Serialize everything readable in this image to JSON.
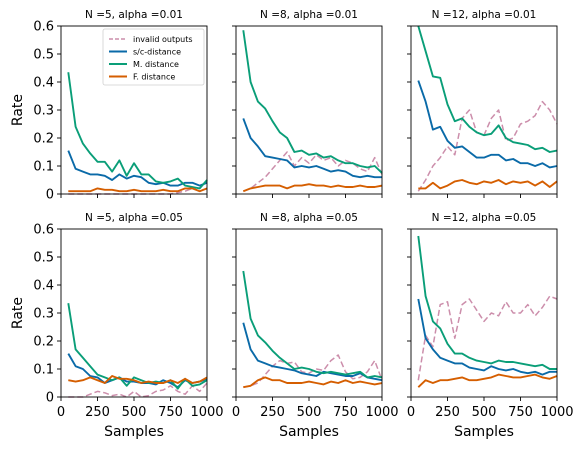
{
  "chart_data": [
    {
      "type": "line",
      "title": "N =5, alpha =0.01",
      "xlabel": "",
      "ylabel": "Rate",
      "xlim": [
        0,
        1000
      ],
      "ylim": [
        0,
        0.6
      ],
      "xticks": [
        0,
        250,
        500,
        750,
        1000
      ],
      "yticks": [
        0,
        0.1,
        0.2,
        0.3,
        0.4,
        0.5,
        0.6
      ],
      "xticklabels_visible": false,
      "yticklabels_visible": true,
      "legend": "upper right",
      "x": [
        50,
        100,
        150,
        200,
        250,
        300,
        350,
        400,
        450,
        500,
        550,
        600,
        650,
        700,
        750,
        800,
        850,
        900,
        950,
        1000
      ],
      "series": [
        {
          "name": "invalid outputs",
          "values": [
            0,
            0,
            0,
            0,
            0,
            0,
            0,
            0,
            0,
            0,
            0,
            0,
            0,
            0,
            0,
            0.005,
            0.01,
            0.02,
            0.01,
            0.02
          ]
        },
        {
          "name": "s/c-distance",
          "values": [
            0.155,
            0.09,
            0.08,
            0.07,
            0.07,
            0.065,
            0.05,
            0.07,
            0.055,
            0.065,
            0.06,
            0.04,
            0.035,
            0.04,
            0.03,
            0.03,
            0.04,
            0.04,
            0.03,
            0.04
          ]
        },
        {
          "name": "M. distance",
          "values": [
            0.435,
            0.24,
            0.18,
            0.145,
            0.115,
            0.115,
            0.08,
            0.12,
            0.065,
            0.11,
            0.07,
            0.07,
            0.045,
            0.04,
            0.045,
            0.055,
            0.03,
            0.025,
            0.02,
            0.05
          ]
        },
        {
          "name": "F. distance",
          "values": [
            0.01,
            0.01,
            0.01,
            0.01,
            0.02,
            0.015,
            0.015,
            0.01,
            0.01,
            0.015,
            0.01,
            0.01,
            0.01,
            0.015,
            0.01,
            0.01,
            0.02,
            0.02,
            0.01,
            0.02
          ]
        }
      ]
    },
    {
      "type": "line",
      "title": "N =8, alpha =0.01",
      "xlabel": "",
      "ylabel": "",
      "xlim": [
        0,
        1000
      ],
      "ylim": [
        0,
        0.6
      ],
      "xticks": [
        0,
        250,
        500,
        750,
        1000
      ],
      "yticks": [
        0,
        0.1,
        0.2,
        0.3,
        0.4,
        0.5,
        0.6
      ],
      "xticklabels_visible": false,
      "yticklabels_visible": false,
      "x": [
        50,
        100,
        150,
        200,
        250,
        300,
        350,
        400,
        450,
        500,
        550,
        600,
        650,
        700,
        750,
        800,
        850,
        900,
        950,
        1000
      ],
      "series": [
        {
          "name": "invalid outputs",
          "values": [
            0.01,
            0.02,
            0.04,
            0.06,
            0.09,
            0.12,
            0.15,
            0.1,
            0.13,
            0.11,
            0.14,
            0.12,
            0.13,
            0.1,
            0.12,
            0.11,
            0.09,
            0.08,
            0.13,
            0.07
          ]
        },
        {
          "name": "s/c-distance",
          "values": [
            0.27,
            0.2,
            0.17,
            0.135,
            0.13,
            0.125,
            0.12,
            0.095,
            0.1,
            0.095,
            0.1,
            0.09,
            0.08,
            0.085,
            0.08,
            0.065,
            0.06,
            0.065,
            0.06,
            0.06
          ]
        },
        {
          "name": "M. distance",
          "values": [
            0.585,
            0.4,
            0.33,
            0.305,
            0.26,
            0.22,
            0.2,
            0.15,
            0.155,
            0.14,
            0.145,
            0.13,
            0.135,
            0.12,
            0.11,
            0.11,
            0.1,
            0.095,
            0.1,
            0.075
          ]
        },
        {
          "name": "F. distance",
          "values": [
            0.01,
            0.02,
            0.025,
            0.03,
            0.03,
            0.03,
            0.02,
            0.03,
            0.03,
            0.035,
            0.03,
            0.03,
            0.025,
            0.03,
            0.025,
            0.025,
            0.03,
            0.025,
            0.025,
            0.03
          ]
        }
      ]
    },
    {
      "type": "line",
      "title": "N =12, alpha =0.01",
      "xlabel": "",
      "ylabel": "",
      "xlim": [
        0,
        1000
      ],
      "ylim": [
        0,
        0.6
      ],
      "xticks": [
        0,
        250,
        500,
        750,
        1000
      ],
      "yticks": [
        0,
        0.1,
        0.2,
        0.3,
        0.4,
        0.5,
        0.6
      ],
      "xticklabels_visible": false,
      "yticklabels_visible": false,
      "x": [
        50,
        100,
        150,
        200,
        250,
        300,
        350,
        400,
        450,
        500,
        550,
        600,
        650,
        700,
        750,
        800,
        850,
        900,
        950,
        1000
      ],
      "series": [
        {
          "name": "invalid outputs",
          "values": [
            0.01,
            0.05,
            0.1,
            0.13,
            0.17,
            0.14,
            0.27,
            0.3,
            0.22,
            0.21,
            0.27,
            0.3,
            0.19,
            0.2,
            0.25,
            0.26,
            0.28,
            0.33,
            0.3,
            0.25
          ]
        },
        {
          "name": "s/c-distance",
          "values": [
            0.405,
            0.33,
            0.23,
            0.24,
            0.19,
            0.165,
            0.17,
            0.15,
            0.13,
            0.13,
            0.14,
            0.14,
            0.12,
            0.125,
            0.11,
            0.11,
            0.1,
            0.11,
            0.095,
            0.1
          ]
        },
        {
          "name": "M. distance",
          "values": [
            0.6,
            0.51,
            0.42,
            0.415,
            0.32,
            0.26,
            0.27,
            0.24,
            0.22,
            0.21,
            0.215,
            0.245,
            0.2,
            0.185,
            0.18,
            0.175,
            0.16,
            0.165,
            0.15,
            0.155
          ]
        },
        {
          "name": "F. distance",
          "values": [
            0.02,
            0.02,
            0.04,
            0.02,
            0.03,
            0.045,
            0.05,
            0.04,
            0.035,
            0.045,
            0.04,
            0.05,
            0.035,
            0.045,
            0.04,
            0.045,
            0.03,
            0.045,
            0.025,
            0.045
          ]
        }
      ]
    },
    {
      "type": "line",
      "title": "N =5, alpha =0.05",
      "xlabel": "Samples",
      "ylabel": "Rate",
      "xlim": [
        0,
        1000
      ],
      "ylim": [
        0,
        0.6
      ],
      "xticks": [
        0,
        250,
        500,
        750,
        1000
      ],
      "yticks": [
        0,
        0.1,
        0.2,
        0.3,
        0.4,
        0.5,
        0.6
      ],
      "xticklabels_visible": true,
      "yticklabels_visible": true,
      "x": [
        50,
        100,
        150,
        200,
        250,
        300,
        350,
        400,
        450,
        500,
        550,
        600,
        650,
        700,
        750,
        800,
        850,
        900,
        950,
        1000
      ],
      "series": [
        {
          "name": "invalid outputs",
          "values": [
            0,
            0,
            0,
            0.01,
            0.02,
            0.015,
            0.005,
            0.01,
            0,
            0.02,
            0,
            0.005,
            0.02,
            0.025,
            0.04,
            0.02,
            0.01,
            0.04,
            0.02,
            0.05
          ]
        },
        {
          "name": "s/c-distance",
          "values": [
            0.155,
            0.11,
            0.1,
            0.075,
            0.07,
            0.05,
            0.06,
            0.07,
            0.055,
            0.055,
            0.05,
            0.05,
            0.045,
            0.06,
            0.05,
            0.035,
            0.06,
            0.05,
            0.055,
            0.065
          ]
        },
        {
          "name": "M. distance",
          "values": [
            0.335,
            0.17,
            0.14,
            0.11,
            0.08,
            0.07,
            0.06,
            0.07,
            0.04,
            0.07,
            0.06,
            0.05,
            0.055,
            0.05,
            0.06,
            0.03,
            0.065,
            0.04,
            0.045,
            0.06
          ]
        },
        {
          "name": "F. distance",
          "values": [
            0.06,
            0.055,
            0.06,
            0.07,
            0.06,
            0.05,
            0.075,
            0.065,
            0.065,
            0.06,
            0.05,
            0.055,
            0.05,
            0.05,
            0.06,
            0.05,
            0.065,
            0.05,
            0.055,
            0.07
          ]
        }
      ]
    },
    {
      "type": "line",
      "title": "N =8, alpha =0.05",
      "xlabel": "Samples",
      "ylabel": "",
      "xlim": [
        0,
        1000
      ],
      "ylim": [
        0,
        0.6
      ],
      "xticks": [
        0,
        250,
        500,
        750,
        1000
      ],
      "yticks": [
        0,
        0.1,
        0.2,
        0.3,
        0.4,
        0.5,
        0.6
      ],
      "xticklabels_visible": true,
      "yticklabels_visible": false,
      "x": [
        50,
        100,
        150,
        200,
        250,
        300,
        350,
        400,
        450,
        500,
        550,
        600,
        650,
        700,
        750,
        800,
        850,
        900,
        950,
        1000
      ],
      "series": [
        {
          "name": "invalid outputs",
          "values": [
            0.035,
            0.04,
            0.05,
            0.08,
            0.11,
            0.13,
            0.12,
            0.125,
            0.09,
            0.085,
            0.1,
            0.095,
            0.13,
            0.15,
            0.09,
            0.065,
            0.07,
            0.09,
            0.13,
            0.06
          ]
        },
        {
          "name": "s/c-distance",
          "values": [
            0.265,
            0.17,
            0.13,
            0.12,
            0.11,
            0.105,
            0.1,
            0.095,
            0.085,
            0.08,
            0.075,
            0.09,
            0.085,
            0.08,
            0.075,
            0.075,
            0.085,
            0.07,
            0.065,
            0.06
          ]
        },
        {
          "name": "M. distance",
          "values": [
            0.45,
            0.28,
            0.22,
            0.195,
            0.165,
            0.14,
            0.12,
            0.1,
            0.105,
            0.1,
            0.09,
            0.085,
            0.09,
            0.085,
            0.08,
            0.085,
            0.09,
            0.07,
            0.075,
            0.07
          ]
        },
        {
          "name": "F. distance",
          "values": [
            0.035,
            0.04,
            0.06,
            0.07,
            0.06,
            0.06,
            0.05,
            0.05,
            0.05,
            0.055,
            0.05,
            0.045,
            0.055,
            0.05,
            0.06,
            0.05,
            0.055,
            0.05,
            0.045,
            0.05
          ]
        }
      ]
    },
    {
      "type": "line",
      "title": "N =12, alpha =0.05",
      "xlabel": "Samples",
      "ylabel": "",
      "xlim": [
        0,
        1000
      ],
      "ylim": [
        0,
        0.6
      ],
      "xticks": [
        0,
        250,
        500,
        750,
        1000
      ],
      "yticks": [
        0,
        0.1,
        0.2,
        0.3,
        0.4,
        0.5,
        0.6
      ],
      "xticklabels_visible": true,
      "yticklabels_visible": false,
      "x": [
        50,
        100,
        150,
        200,
        250,
        300,
        350,
        400,
        450,
        500,
        550,
        600,
        650,
        700,
        750,
        800,
        850,
        900,
        950,
        1000
      ],
      "series": [
        {
          "name": "invalid outputs",
          "values": [
            0.06,
            0.22,
            0.18,
            0.33,
            0.34,
            0.21,
            0.33,
            0.35,
            0.31,
            0.27,
            0.3,
            0.29,
            0.34,
            0.3,
            0.3,
            0.33,
            0.29,
            0.32,
            0.36,
            0.35
          ]
        },
        {
          "name": "s/c-distance",
          "values": [
            0.35,
            0.21,
            0.17,
            0.14,
            0.13,
            0.12,
            0.12,
            0.105,
            0.1,
            0.095,
            0.11,
            0.1,
            0.095,
            0.1,
            0.09,
            0.085,
            0.09,
            0.08,
            0.09,
            0.09
          ]
        },
        {
          "name": "M. distance",
          "values": [
            0.575,
            0.36,
            0.27,
            0.245,
            0.19,
            0.155,
            0.155,
            0.14,
            0.13,
            0.125,
            0.12,
            0.13,
            0.125,
            0.125,
            0.12,
            0.115,
            0.11,
            0.115,
            0.1,
            0.1
          ]
        },
        {
          "name": "F. distance",
          "values": [
            0.035,
            0.06,
            0.05,
            0.06,
            0.06,
            0.065,
            0.07,
            0.06,
            0.06,
            0.065,
            0.07,
            0.08,
            0.075,
            0.07,
            0.07,
            0.075,
            0.08,
            0.07,
            0.065,
            0.075
          ]
        }
      ]
    }
  ],
  "colors": {
    "invalid outputs": "#cc8eab",
    "s/c-distance": "#0a6aa8",
    "M. distance": "#0a9e78",
    "F. distance": "#d55e00"
  }
}
